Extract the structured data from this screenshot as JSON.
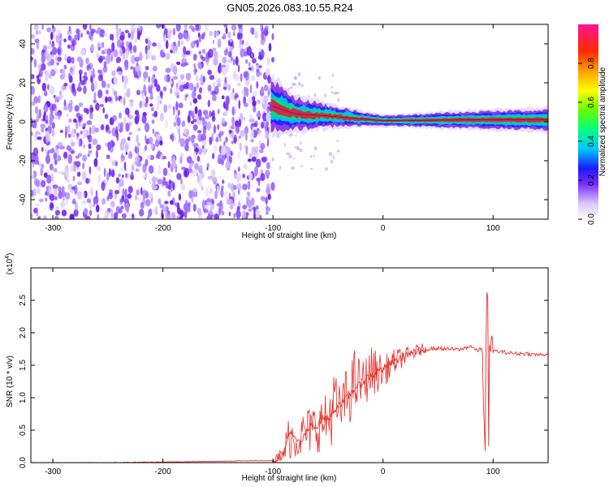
{
  "figure_title": "GN05.2026.083.10.55.R24",
  "colors": {
    "snr_line": "#e8302a",
    "spectrum_low": "#8a2be2",
    "spectrum_core": "#e0194a",
    "axis": "#000000"
  },
  "chart_data": [
    {
      "type": "heatmap",
      "title": "GN05.2026.083.10.55.R24",
      "xlabel": "Height of straight line (km)",
      "ylabel": "Frequency (Hz)",
      "xlim": [
        -320,
        150
      ],
      "ylim": [
        -50,
        50
      ],
      "xticks": [
        -300,
        -200,
        -100,
        0,
        100
      ],
      "yticks": [
        -40,
        -20,
        0,
        20,
        40
      ],
      "description_values": {
        "noise_region_x": [
          -320,
          -100
        ],
        "signal_ridge": [
          {
            "x": -100,
            "y_center": 8,
            "y_halfwidth": 6
          },
          {
            "x": -80,
            "y_center": 4,
            "y_halfwidth": 4
          },
          {
            "x": -50,
            "y_center": 3,
            "y_halfwidth": 2.5
          },
          {
            "x": 0,
            "y_center": 0.5,
            "y_halfwidth": 1.2
          },
          {
            "x": 80,
            "y_center": 1,
            "y_halfwidth": 2
          },
          {
            "x": 150,
            "y_center": 1,
            "y_halfwidth": 2.5
          }
        ]
      },
      "colorbar": {
        "label": "Normalized spectral amplitude",
        "ticks": [
          "0.0",
          "0.2",
          "0.4",
          "0.6",
          "0.8"
        ],
        "range": [
          0,
          1
        ]
      }
    },
    {
      "type": "line",
      "xlabel": "Height of straight line (km)",
      "ylabel": "SNR (10 * v/v)",
      "exponent_label": "(x10",
      "exponent_power": "4",
      "exponent_close": ")",
      "xlim": [
        -320,
        150
      ],
      "ylim": [
        0,
        3.0
      ],
      "xticks": [
        -300,
        -200,
        -100,
        0,
        100
      ],
      "yticks": [
        "0.0",
        "0.5",
        "1.0",
        "1.5",
        "2.0",
        "2.5"
      ],
      "series": [
        {
          "name": "SNR",
          "x": [
            -320,
            -250,
            -200,
            -150,
            -120,
            -100,
            -90,
            -85,
            -80,
            -75,
            -70,
            -65,
            -60,
            -55,
            -50,
            -45,
            -40,
            -35,
            -30,
            -25,
            -20,
            -15,
            -10,
            -5,
            0,
            10,
            20,
            30,
            40,
            50,
            60,
            70,
            80,
            85,
            90,
            93,
            94,
            95,
            96,
            97,
            98,
            100,
            110,
            120,
            130,
            140,
            150
          ],
          "y": [
            0.0,
            0.0,
            0.01,
            0.02,
            0.03,
            0.03,
            0.12,
            0.5,
            0.35,
            0.3,
            0.45,
            0.6,
            0.55,
            0.7,
            0.65,
            0.8,
            0.9,
            0.95,
            1.05,
            1.15,
            1.2,
            1.3,
            1.35,
            1.4,
            1.45,
            1.55,
            1.65,
            1.7,
            1.75,
            1.76,
            1.75,
            1.74,
            1.8,
            1.72,
            1.76,
            0.2,
            2.7,
            2.9,
            0.3,
            1.9,
            1.75,
            1.72,
            1.7,
            1.68,
            1.68,
            1.66,
            1.67
          ],
          "env_x": [
            -320,
            -100,
            -90,
            -85,
            -80,
            -70,
            -60,
            -50,
            -45,
            -40,
            -30,
            -25,
            -20,
            -10,
            0,
            10,
            20,
            40
          ],
          "env_hi": [
            0.03,
            0.05,
            0.3,
            0.85,
            0.6,
            0.85,
            0.95,
            1.1,
            1.5,
            1.2,
            1.6,
            1.8,
            1.55,
            1.8,
            1.65,
            1.75,
            1.78,
            1.85
          ],
          "env_lo": [
            0.0,
            0.0,
            0.0,
            0.05,
            0.05,
            0.1,
            0.15,
            0.2,
            0.3,
            0.4,
            0.6,
            0.7,
            0.85,
            1.0,
            1.15,
            1.35,
            1.5,
            1.7
          ]
        }
      ]
    }
  ]
}
